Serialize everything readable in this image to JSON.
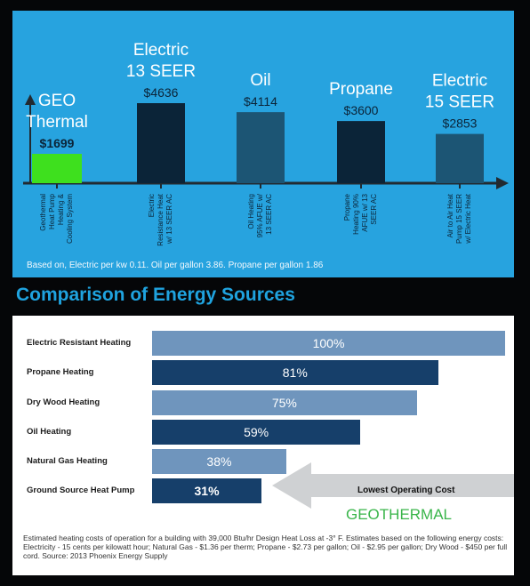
{
  "chart_data": [
    {
      "type": "bar",
      "categories": [
        {
          "name": "GEO Thermal",
          "desc": [
            "Geothermal",
            "Heat Pump",
            "Heating &",
            "Cooling System"
          ]
        },
        {
          "name": "Electric 13 SEER",
          "desc": [
            "Electric",
            "Resistance Heat",
            "w/ 13 SEER AC"
          ]
        },
        {
          "name": "Oil",
          "desc": [
            "Oil Heating",
            "95% AFUE w/",
            "13 SEER AC"
          ]
        },
        {
          "name": "Propane",
          "desc": [
            "Propane",
            "Heating 90%",
            "AFUE w/ 13",
            "SEER AC"
          ]
        },
        {
          "name": "Electric 15 SEER",
          "desc": [
            "Air to Air Heat",
            "Pump 15 SEER",
            "w/ Electric Heat"
          ]
        }
      ],
      "values": [
        1699,
        4636,
        4114,
        3600,
        2853
      ],
      "value_labels": [
        "$1699",
        "$4636",
        "$4114",
        "$3600",
        "$2853"
      ],
      "top_labels": [
        [
          "GEO",
          "Thermal"
        ],
        [
          "Electric",
          "13 SEER"
        ],
        [
          "Oil"
        ],
        [
          "Propane"
        ],
        [
          "Electric",
          "15 SEER"
        ]
      ],
      "ylim": [
        0,
        4636
      ],
      "colors": {
        "highlight": "#3ee01e",
        "dark": "#0b2438",
        "mid": "#1c5574",
        "panel": "#27a3df",
        "axis": "#222a30"
      },
      "footnote": "Based on, Electric per kw 0.11. Oil per gallon 3.86. Propane per gallon 1.86"
    },
    {
      "type": "bar",
      "title": "Comparison of Energy Sources",
      "categories": [
        "Electric Resistant Heating",
        "Propane Heating",
        "Dry Wood Heating",
        "Oil Heating",
        "Natural Gas Heating",
        "Ground Source Heat Pump"
      ],
      "values": [
        100,
        81,
        75,
        59,
        38,
        31
      ],
      "value_labels": [
        "100%",
        "81%",
        "75%",
        "59%",
        "38%",
        "31%"
      ],
      "xlim": [
        0,
        100
      ],
      "styles": [
        "light",
        "dark",
        "light",
        "dark",
        "light",
        "dark"
      ],
      "colors": {
        "light": "#6f95bd",
        "dark": "#163f6a",
        "arrow": "#cfd1d3",
        "geo": "#39b54a"
      },
      "callout": {
        "text": "Lowest Operating Cost",
        "label": "GEOTHERMAL"
      },
      "footnote": "Estimated heating costs of operation for a building with 39,000 Btu/hr Design Heat Loss at -3° F. Estimates based on the following energy costs: Electricity - 15 cents per kilowatt hour; Natural Gas - $1.36 per therm; Propane - $2.73 per gallon; Oil - $2.95 per gallon; Dry Wood - $450 per full cord. Source: 2013 Phoenix Energy Supply"
    }
  ]
}
